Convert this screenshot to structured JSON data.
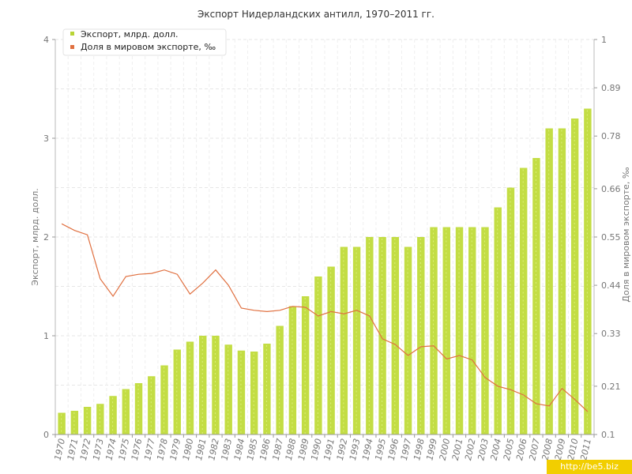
{
  "chart_data": {
    "type": "bar",
    "title": "Экспорт Нидерландских антилл, 1970–2011 гг.",
    "ylabel": "Экспорт, млрд. долл.",
    "y2label": "Доля в мировом экспорте, ‰",
    "ylim": [
      0,
      4
    ],
    "y2lim": [
      0.1,
      1
    ],
    "yticks": [
      "0",
      "1",
      "2",
      "3",
      "4"
    ],
    "y2ticks": [
      "0.1",
      "0.21",
      "0.33",
      "0.44",
      "0.55",
      "0.66",
      "0.78",
      "0.89",
      "1"
    ],
    "grid": true,
    "legend_position": "top-left",
    "categories": [
      "1970",
      "1971",
      "1972",
      "1973",
      "1974",
      "1975",
      "1976",
      "1977",
      "1978",
      "1979",
      "1980",
      "1981",
      "1982",
      "1983",
      "1984",
      "1985",
      "1986",
      "1987",
      "1988",
      "1989",
      "1990",
      "1991",
      "1992",
      "1993",
      "1994",
      "1995",
      "1996",
      "1997",
      "1998",
      "1999",
      "2000",
      "2001",
      "2002",
      "2003",
      "2004",
      "2005",
      "2006",
      "2007",
      "2008",
      "2009",
      "2010",
      "2011"
    ],
    "series": [
      {
        "name": "Экспорт, млрд. долл.",
        "type": "bar",
        "axis": "left",
        "color": "#c3dd44",
        "values": [
          0.22,
          0.24,
          0.28,
          0.31,
          0.39,
          0.46,
          0.52,
          0.59,
          0.7,
          0.86,
          0.94,
          1.0,
          1.0,
          0.91,
          0.85,
          0.84,
          0.92,
          1.1,
          1.3,
          1.4,
          1.6,
          1.7,
          1.9,
          1.9,
          2.0,
          2.0,
          2.0,
          1.9,
          2.0,
          2.1,
          2.1,
          2.1,
          2.1,
          2.1,
          2.3,
          2.5,
          2.7,
          2.8,
          3.1,
          3.1,
          3.2,
          3.3
        ]
      },
      {
        "name": "Доля в мировом экспорте, ‰",
        "type": "line",
        "axis": "right",
        "color": "#e07040",
        "values": [
          0.58,
          0.565,
          0.555,
          0.455,
          0.415,
          0.46,
          0.465,
          0.467,
          0.475,
          0.465,
          0.42,
          0.445,
          0.475,
          0.44,
          0.388,
          0.383,
          0.38,
          0.383,
          0.392,
          0.39,
          0.37,
          0.38,
          0.375,
          0.383,
          0.37,
          0.318,
          0.305,
          0.28,
          0.3,
          0.302,
          0.272,
          0.28,
          0.27,
          0.23,
          0.21,
          0.202,
          0.19,
          0.17,
          0.165,
          0.205,
          0.18,
          0.152
        ]
      }
    ]
  },
  "watermark": "http://be5.biz"
}
